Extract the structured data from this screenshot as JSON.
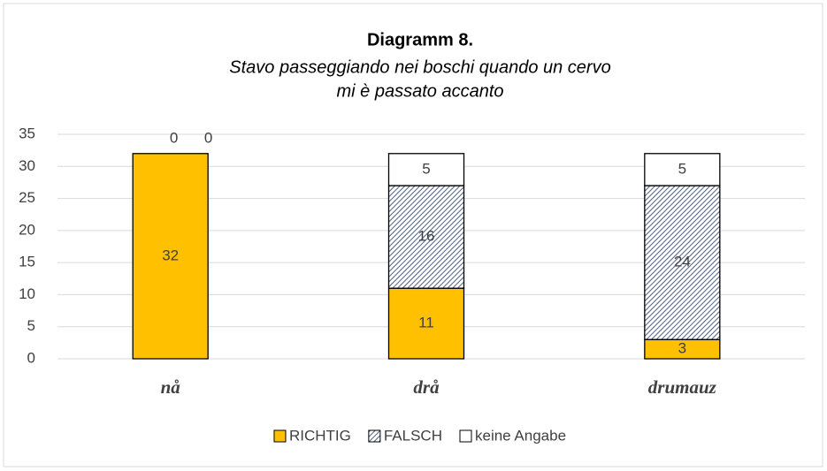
{
  "chart_data": {
    "type": "stacked_bar",
    "title": "Diagramm 8.",
    "subtitle": [
      "Stavo passeggiando nei boschi quando un cervo",
      "mi è passato accanto"
    ],
    "categories": [
      "nå",
      "drå",
      "drumauz"
    ],
    "series": [
      {
        "name": "RICHTIG",
        "color": "#ffc000",
        "values": [
          32,
          11,
          3
        ]
      },
      {
        "name": "FALSCH",
        "color": "#203864",
        "pattern": "hatch",
        "values": [
          0,
          16,
          24
        ]
      },
      {
        "name": "keine Angabe",
        "color": "#ffffff",
        "values": [
          0,
          5,
          5
        ]
      }
    ],
    "ylim": [
      0,
      35
    ],
    "yticks": [
      0,
      5,
      10,
      15,
      20,
      25,
      30,
      35
    ],
    "grid": true,
    "legend": "bottom"
  }
}
